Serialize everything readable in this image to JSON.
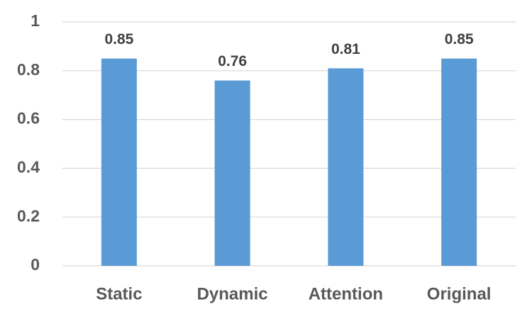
{
  "chart_data": {
    "type": "bar",
    "categories": [
      "Static",
      "Dynamic",
      "Attention",
      "Original"
    ],
    "values": [
      0.85,
      0.76,
      0.81,
      0.85
    ],
    "color": "#5b9bd5",
    "ylim": [
      0,
      1
    ],
    "yticks": [
      0,
      0.2,
      0.4,
      0.6,
      0.8,
      1
    ],
    "grid": true
  }
}
